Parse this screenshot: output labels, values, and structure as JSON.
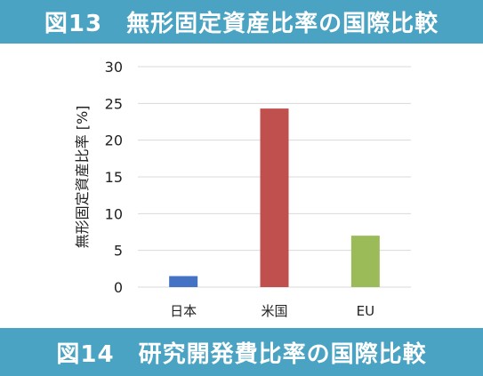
{
  "header": {
    "title": "図13　無形固定資産比率の国際比較"
  },
  "footer": {
    "title": "図14　研究開発費比率の国際比較"
  },
  "colors": {
    "banner": "#4aa3c2",
    "grid": "#d9d9d9"
  },
  "chart_data": {
    "type": "bar",
    "categories": [
      "日本",
      "米国",
      "EU"
    ],
    "values": [
      1.5,
      24.3,
      7.0
    ],
    "colors": [
      "#4472c4",
      "#c0504d",
      "#9bbb59"
    ],
    "title": "",
    "xlabel": "",
    "ylabel": "無形固定資産比率 [%]",
    "ylim": [
      0,
      30
    ],
    "yticks": [
      0,
      5,
      10,
      15,
      20,
      25,
      30
    ],
    "grid": true,
    "legend": "none"
  }
}
